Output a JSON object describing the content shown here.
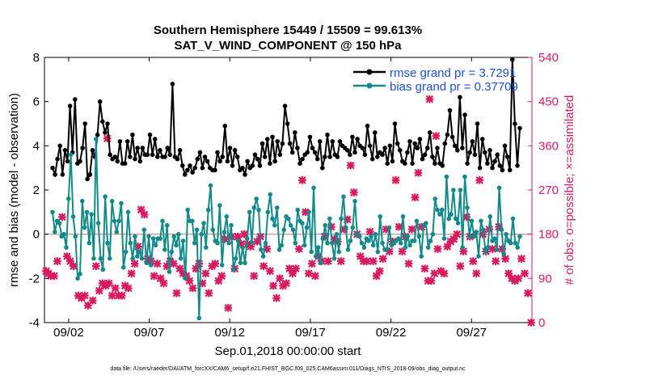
{
  "chart_data": {
    "type": "line",
    "title_line1": "Southern Hemisphere 15449 / 15509 = 99.613%",
    "title_line2": "SAT_V_WIND_COMPONENT @ 150 hPa",
    "ylabel": "rmse and bias (model - observation)",
    "ylabel_right": "# of obs: o=possible; ×=assimilated",
    "xlabel": "Sep.01,2018 00:00:00 start",
    "footnote": "data file: /Users/raeder/DAI/ATM_forcXX/CAM6_setup/f.e21.FHIST_BGC.f09_025.CAM6assim.011/Diags_NTrS_2018-09/obs_diag_output.nc",
    "xlim": [
      0.5,
      30.75
    ],
    "ylim": [
      -4,
      8
    ],
    "ylim_right": [
      0,
      540
    ],
    "x_ticks": [
      {
        "x": 2,
        "label": "09/02"
      },
      {
        "x": 7,
        "label": "09/07"
      },
      {
        "x": 12,
        "label": "09/12"
      },
      {
        "x": 17,
        "label": "09/17"
      },
      {
        "x": 22,
        "label": "09/22"
      },
      {
        "x": 27,
        "label": "09/27"
      }
    ],
    "y_ticks": [
      "-4",
      "-2",
      "0",
      "2",
      "4",
      "6",
      "8"
    ],
    "y_right_ticks": [
      "0",
      "90",
      "180",
      "270",
      "360",
      "450",
      "540"
    ],
    "legend": [
      {
        "label": "rmse grand pr = 3.7291",
        "color": "#000000"
      },
      {
        "label": "bias grand pr = 0.37709",
        "color": "#138a8a"
      }
    ],
    "series": [
      {
        "name": "rmse",
        "color": "#000000",
        "values": [
          3.0,
          2.7,
          3.4,
          4.0,
          2.7,
          3.8,
          3.3,
          5.8,
          3.7,
          6.1,
          3.2,
          3.3,
          3.9,
          5.0,
          2.5,
          2.7,
          3.8,
          3.5,
          4.5,
          6.0,
          5.1,
          4.6,
          5.0,
          3.6,
          3.4,
          3.5,
          3.3,
          4.2,
          3.2,
          3.2,
          4.2,
          3.5,
          4.5,
          3.4,
          3.9,
          3.3,
          3.9,
          3.6,
          3.6,
          4.5,
          3.6,
          4.3,
          3.5,
          3.8,
          3.5,
          3.5,
          3.9,
          3.6,
          6.8,
          3.5,
          3.4,
          3.8,
          3.1,
          2.7,
          2.9,
          3.1,
          2.8,
          3.0,
          3.4,
          3.7,
          3.0,
          3.5,
          3.3,
          3.0,
          2.9,
          2.9,
          3.7,
          3.3,
          3.5,
          4.9,
          3.3,
          3.9,
          3.1,
          3.8,
          3.5,
          2.9,
          3.0,
          2.7,
          3.3,
          3.0,
          3.1,
          3.6,
          3.4,
          3.1,
          4.1,
          3.5,
          4.3,
          3.2,
          4.4,
          3.3,
          4.2,
          3.6,
          4.1,
          5.8,
          5.0,
          4.1,
          3.7,
          4.6,
          3.9,
          3.2,
          3.4,
          3.6,
          3.7,
          4.4,
          3.9,
          3.7,
          3.4,
          4.2,
          3.0,
          3.5,
          4.5,
          3.5,
          4.2,
          3.6,
          3.5,
          4.2,
          4.0,
          3.9,
          3.8,
          3.6,
          4.4,
          3.7,
          4.3,
          4.0,
          3.9,
          3.6,
          4.9,
          4.0,
          3.4,
          4.6,
          3.5,
          3.7,
          3.6,
          3.9,
          3.2,
          4.0,
          3.3,
          5.0,
          4.1,
          3.8,
          3.3,
          3.2,
          3.7,
          4.2,
          3.2,
          4.1,
          3.9,
          4.3,
          3.4,
          3.6,
          3.9,
          4.6,
          3.5,
          3.2,
          3.9,
          3.2,
          3.1,
          4.1,
          4.5,
          5.6,
          4.4,
          4.0,
          3.8,
          6.2,
          3.9,
          5.4,
          3.2,
          3.7,
          4.2,
          3.6,
          5.0,
          3.0,
          4.3,
          3.7,
          3.2,
          3.8,
          3.0,
          3.3,
          3.6,
          3.1,
          2.9,
          4.0,
          3.5,
          2.9,
          7.9,
          5.0,
          3.1,
          4.8
        ]
      },
      {
        "name": "bias",
        "color": "#138a8a",
        "values": [
          1.0,
          0.1,
          0.6,
          0.5,
          -0.1,
          0.0,
          -0.6,
          1.6,
          3.6,
          0.8,
          -0.1,
          -2.0,
          -1.8,
          1.5,
          0.3,
          1.0,
          -0.4,
          0.9,
          -1.1,
          4.3,
          0.5,
          -1.1,
          -1.6,
          1.7,
          -0.4,
          -1.1,
          1.5,
          0.6,
          0.1,
          0.6,
          1.4,
          -1.5,
          -0.8,
          1.0,
          -0.4,
          -1.1,
          -0.1,
          -1.0,
          -0.8,
          -1.1,
          0.2,
          -1.3,
          -0.1,
          -1.4,
          -0.2,
          -0.5,
          -0.2,
          -0.2,
          0.6,
          -0.7,
          0.4,
          -1.7,
          -0.8,
          -0.1,
          -0.5,
          0.0,
          -1.1,
          -0.3,
          -2.0,
          1.1,
          0.6,
          0.6,
          -0.4,
          0.2,
          -3.8,
          0.0,
          0.5,
          -0.6,
          1.1,
          2.2,
          0.2,
          -0.3,
          -0.4,
          1.3,
          -1.4,
          0.1,
          0.8,
          -0.4,
          0.4,
          -1.6,
          -1.1,
          -0.3,
          -1.3,
          -0.6,
          -1.3,
          -0.2,
          1.0,
          -0.4,
          1.2,
          1.6,
          1.1,
          -0.7,
          -1.0,
          -0.4,
          1.0,
          1.8,
          0.7,
          0.4,
          1.2,
          -0.7,
          -0.5,
          0.2,
          0.8,
          0.7,
          0.4,
          0.2,
          -0.4,
          1.1,
          0.6,
          0.5,
          -0.5,
          0.3,
          1.0,
          -0.8,
          2.1,
          -1.0,
          -0.6,
          -1.3,
          -0.2,
          0.4,
          -0.4,
          0.7,
          -0.4,
          -1.1,
          0.0,
          -0.8,
          0.7,
          1.7,
          0.3,
          -0.7,
          -0.3,
          0.3,
          1.5,
          0.0,
          -0.1,
          -0.4,
          -0.6,
          -0.2,
          -0.3,
          -0.1,
          -0.5,
          0.0,
          -0.8,
          0.8,
          -0.4,
          -0.7,
          -0.7,
          0.3,
          -0.5,
          -0.4,
          -0.3,
          -0.2,
          -0.4,
          0.8,
          -0.6,
          -0.1,
          -0.5,
          -0.3,
          -0.3,
          0.6,
          -0.1,
          -1.0,
          0.4,
          0.5,
          -0.6,
          -0.3,
          0.0,
          1.6,
          1.1,
          0.9,
          1.1,
          -0.2,
          2.6,
          0.7,
          0.9,
          2.0,
          0.7,
          0.5,
          2.0,
          -0.6,
          2.6,
          1.2,
          -0.1,
          0.6,
          -0.1,
          0.1,
          -1.0,
          0.6,
          0.2,
          -0.8,
          -0.6,
          0.8,
          -0.3,
          -0.2,
          -0.7,
          2.1,
          0.2,
          -0.9,
          0.0,
          -0.3,
          -0.4,
          0.7,
          -0.4,
          -0.6,
          -0.1
        ]
      }
    ],
    "obs_assimilated": [
      {
        "x": 0.6,
        "y": 105
      },
      {
        "x": 0.75,
        "y": 100
      },
      {
        "x": 0.9,
        "y": 95
      },
      {
        "x": 1.1,
        "y": 95
      },
      {
        "x": 1.3,
        "y": 125
      },
      {
        "x": 1.6,
        "y": 215
      },
      {
        "x": 1.9,
        "y": 135
      },
      {
        "x": 2.1,
        "y": 125
      },
      {
        "x": 2.3,
        "y": 115
      },
      {
        "x": 2.6,
        "y": 55
      },
      {
        "x": 2.8,
        "y": 50
      },
      {
        "x": 3.0,
        "y": 55
      },
      {
        "x": 3.2,
        "y": 35
      },
      {
        "x": 3.5,
        "y": 45
      },
      {
        "x": 3.7,
        "y": 115
      },
      {
        "x": 3.9,
        "y": 65
      },
      {
        "x": 4.1,
        "y": 80
      },
      {
        "x": 4.3,
        "y": 75
      },
      {
        "x": 4.5,
        "y": 80
      },
      {
        "x": 4.7,
        "y": 55
      },
      {
        "x": 4.9,
        "y": 70
      },
      {
        "x": 5.1,
        "y": 55
      },
      {
        "x": 5.3,
        "y": 55
      },
      {
        "x": 5.5,
        "y": 75
      },
      {
        "x": 5.7,
        "y": 70
      },
      {
        "x": 5.9,
        "y": 100
      },
      {
        "x": 6.1,
        "y": 120
      },
      {
        "x": 6.3,
        "y": 155
      },
      {
        "x": 6.5,
        "y": 230
      },
      {
        "x": 6.7,
        "y": 220
      },
      {
        "x": 6.9,
        "y": 130
      },
      {
        "x": 7.1,
        "y": 125
      },
      {
        "x": 7.3,
        "y": 95
      },
      {
        "x": 7.5,
        "y": 120
      },
      {
        "x": 7.7,
        "y": 90
      },
      {
        "x": 7.9,
        "y": 80
      },
      {
        "x": 8.1,
        "y": 115
      },
      {
        "x": 8.3,
        "y": 125
      },
      {
        "x": 8.5,
        "y": 120
      },
      {
        "x": 8.7,
        "y": 60
      },
      {
        "x": 8.9,
        "y": 110
      },
      {
        "x": 9.1,
        "y": 100
      },
      {
        "x": 9.3,
        "y": 95
      },
      {
        "x": 9.5,
        "y": 85
      },
      {
        "x": 9.7,
        "y": 70
      },
      {
        "x": 9.9,
        "y": 110
      },
      {
        "x": 10.1,
        "y": 120
      },
      {
        "x": 10.3,
        "y": 80
      },
      {
        "x": 10.5,
        "y": 100
      },
      {
        "x": 10.7,
        "y": 60
      },
      {
        "x": 10.9,
        "y": 115
      },
      {
        "x": 11.1,
        "y": 120
      },
      {
        "x": 11.3,
        "y": 85
      },
      {
        "x": 11.5,
        "y": 95
      },
      {
        "x": 11.7,
        "y": 170
      },
      {
        "x": 11.9,
        "y": 30
      },
      {
        "x": 12.1,
        "y": 175
      },
      {
        "x": 12.3,
        "y": 110
      },
      {
        "x": 12.5,
        "y": 175
      },
      {
        "x": 12.7,
        "y": 160
      },
      {
        "x": 12.9,
        "y": 180
      },
      {
        "x": 13.1,
        "y": 160
      },
      {
        "x": 13.3,
        "y": 155
      },
      {
        "x": 13.5,
        "y": 95
      },
      {
        "x": 13.7,
        "y": 165
      },
      {
        "x": 13.9,
        "y": 175
      },
      {
        "x": 14.1,
        "y": 115
      },
      {
        "x": 14.3,
        "y": 150
      },
      {
        "x": 14.5,
        "y": 105
      },
      {
        "x": 14.7,
        "y": 75
      },
      {
        "x": 14.9,
        "y": 50
      },
      {
        "x": 15.1,
        "y": 90
      },
      {
        "x": 15.3,
        "y": 75
      },
      {
        "x": 15.5,
        "y": 80
      },
      {
        "x": 15.7,
        "y": 110
      },
      {
        "x": 15.9,
        "y": 100
      },
      {
        "x": 16.1,
        "y": 110
      },
      {
        "x": 16.3,
        "y": 150
      },
      {
        "x": 16.5,
        "y": 290
      },
      {
        "x": 16.7,
        "y": 225
      },
      {
        "x": 16.9,
        "y": 100
      },
      {
        "x": 17.1,
        "y": 120
      },
      {
        "x": 17.3,
        "y": 95
      },
      {
        "x": 17.5,
        "y": 135
      },
      {
        "x": 17.7,
        "y": 125
      },
      {
        "x": 17.9,
        "y": 175
      },
      {
        "x": 18.1,
        "y": 125
      },
      {
        "x": 18.3,
        "y": 195
      },
      {
        "x": 18.5,
        "y": 170
      },
      {
        "x": 18.7,
        "y": 165
      },
      {
        "x": 18.9,
        "y": 125
      },
      {
        "x": 19.1,
        "y": 190
      },
      {
        "x": 19.3,
        "y": 210
      },
      {
        "x": 19.5,
        "y": 320
      },
      {
        "x": 19.7,
        "y": 265
      },
      {
        "x": 19.9,
        "y": 180
      },
      {
        "x": 20.1,
        "y": 135
      },
      {
        "x": 20.3,
        "y": 125
      },
      {
        "x": 20.5,
        "y": 125
      },
      {
        "x": 20.7,
        "y": 185
      },
      {
        "x": 20.9,
        "y": 125
      },
      {
        "x": 21.1,
        "y": 95
      },
      {
        "x": 21.3,
        "y": 105
      },
      {
        "x": 21.5,
        "y": 130
      },
      {
        "x": 21.7,
        "y": 190
      },
      {
        "x": 21.9,
        "y": 145
      },
      {
        "x": 22.1,
        "y": 165
      },
      {
        "x": 22.3,
        "y": 290
      },
      {
        "x": 22.5,
        "y": 195
      },
      {
        "x": 22.7,
        "y": 145
      },
      {
        "x": 22.9,
        "y": 175
      },
      {
        "x": 23.1,
        "y": 120
      },
      {
        "x": 23.3,
        "y": 190
      },
      {
        "x": 23.5,
        "y": 255
      },
      {
        "x": 23.7,
        "y": 305
      },
      {
        "x": 23.9,
        "y": 195
      },
      {
        "x": 24.1,
        "y": 110
      },
      {
        "x": 24.3,
        "y": 85
      },
      {
        "x": 24.5,
        "y": 85
      },
      {
        "x": 24.7,
        "y": 100
      },
      {
        "x": 24.9,
        "y": 150
      },
      {
        "x": 25.1,
        "y": 105
      },
      {
        "x": 25.3,
        "y": 100
      },
      {
        "x": 25.5,
        "y": 155
      },
      {
        "x": 25.7,
        "y": 165
      },
      {
        "x": 25.9,
        "y": 170
      },
      {
        "x": 26.1,
        "y": 180
      },
      {
        "x": 26.3,
        "y": 115
      },
      {
        "x": 26.5,
        "y": 145
      },
      {
        "x": 26.7,
        "y": 215
      },
      {
        "x": 26.9,
        "y": 175
      },
      {
        "x": 27.1,
        "y": 125
      },
      {
        "x": 27.3,
        "y": 100
      },
      {
        "x": 27.5,
        "y": 290
      },
      {
        "x": 27.7,
        "y": 180
      },
      {
        "x": 27.9,
        "y": 145
      },
      {
        "x": 28.1,
        "y": 190
      },
      {
        "x": 28.3,
        "y": 150
      },
      {
        "x": 28.5,
        "y": 125
      },
      {
        "x": 28.7,
        "y": 195
      },
      {
        "x": 28.9,
        "y": 150
      },
      {
        "x": 29.1,
        "y": 130
      },
      {
        "x": 29.3,
        "y": 100
      },
      {
        "x": 29.5,
        "y": 90
      },
      {
        "x": 29.7,
        "y": 85
      },
      {
        "x": 29.9,
        "y": 90
      },
      {
        "x": 30.1,
        "y": 130
      },
      {
        "x": 30.3,
        "y": 100
      },
      {
        "x": 30.5,
        "y": 60
      },
      {
        "x": 30.7,
        "y": 0
      },
      {
        "x": 24.4,
        "y": 455
      },
      {
        "x": 24.8,
        "y": 380
      },
      {
        "x": 4.4,
        "y": 375
      }
    ]
  }
}
